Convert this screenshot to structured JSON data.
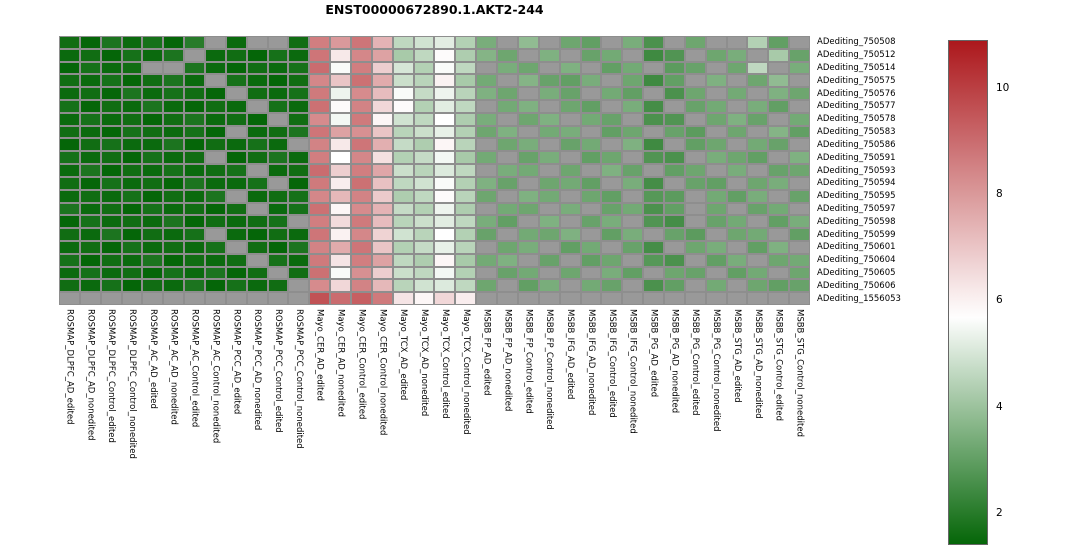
{
  "chart_data": {
    "type": "heatmap",
    "title": "ENST00000672890.1.AKT2-244",
    "legend_position": "right-colorbar",
    "grid": true,
    "rows": [
      "ADediting_750508",
      "ADediting_750512",
      "ADediting_750514",
      "ADediting_750575",
      "ADediting_750576",
      "ADediting_750577",
      "ADediting_750578",
      "ADediting_750583",
      "ADediting_750586",
      "ADediting_750591",
      "ADediting_750593",
      "ADediting_750594",
      "ADediting_750595",
      "ADediting_750597",
      "ADediting_750598",
      "ADediting_750599",
      "ADediting_750601",
      "ADediting_750604",
      "ADediting_750605",
      "ADediting_750606",
      "ADediting_1556053"
    ],
    "columns": [
      "ROSMAP_DLPFC_AD_edited",
      "ROSMAP_DLPFC_AD_nonedited",
      "ROSMAP_DLPFC_Control_edited",
      "ROSMAP_DLPFC_Control_nonedited",
      "ROSMAP_AC_AD_edited",
      "ROSMAP_AC_AD_nonedited",
      "ROSMAP_AC_Control_edited",
      "ROSMAP_AC_Control_nonedited",
      "ROSMAP_PCC_AD_edited",
      "ROSMAP_PCC_AD_nonedited",
      "ROSMAP_PCC_Control_edited",
      "ROSMAP_PCC_Control_nonedited",
      "Mayo_CER_AD_edited",
      "Mayo_CER_AD_nonedited",
      "Mayo_CER_Control_edited",
      "Mayo_CER_Control_nonedited",
      "Mayo_TCX_AD_edited",
      "Mayo_TCX_AD_nonedited",
      "Mayo_TCX_Control_edited",
      "Mayo_TCX_Control_nonedited",
      "MSBB_FP_AD_edited",
      "MSBB_FP_AD_nonedited",
      "MSBB_FP_Control_edited",
      "MSBB_FP_Control_nonedited",
      "MSBB_IFG_AD_edited",
      "MSBB_IFG_AD_nonedited",
      "MSBB_IFG_Control_edited",
      "MSBB_IFG_Control_nonedited",
      "MSBB_PG_AD_edited",
      "MSBB_PG_AD_nonedited",
      "MSBB_PG_Control_edited",
      "MSBB_PG_Control_nonedited",
      "MSBB_STG_AD_edited",
      "MSBB_STG_AD_nonedited",
      "MSBB_STG_Control_edited",
      "MSBB_STG_Control_nonedited"
    ],
    "values": [
      [
        1.6,
        1.4,
        1.8,
        1.5,
        1.7,
        1.4,
        2.0,
        null,
        1.5,
        null,
        null,
        1.6,
        8.6,
        8.0,
        8.8,
        7.4,
        4.6,
        4.9,
        5.2,
        4.4,
        3.4,
        null,
        3.8,
        null,
        3.2,
        3.0,
        null,
        3.4,
        2.6,
        null,
        3.2,
        null,
        null,
        4.4,
        3.0,
        null
      ],
      [
        1.5,
        1.6,
        1.4,
        1.7,
        1.5,
        1.8,
        null,
        1.5,
        1.6,
        1.4,
        1.7,
        1.5,
        8.8,
        6.2,
        8.4,
        7.8,
        4.2,
        4.6,
        5.8,
        4.3,
        3.6,
        3.2,
        null,
        3.5,
        null,
        3.1,
        3.3,
        null,
        2.4,
        2.7,
        null,
        3.2,
        3.4,
        null,
        4.2,
        3.1
      ],
      [
        1.4,
        1.7,
        1.5,
        1.6,
        null,
        null,
        1.8,
        1.5,
        1.4,
        1.6,
        1.5,
        1.7,
        9.0,
        5.6,
        8.6,
        6.8,
        5.0,
        4.4,
        5.6,
        4.6,
        null,
        3.4,
        3.2,
        null,
        3.5,
        null,
        3.0,
        3.3,
        null,
        2.9,
        3.1,
        null,
        3.2,
        4.6,
        null,
        3.4
      ],
      [
        1.6,
        1.5,
        1.7,
        1.4,
        1.6,
        1.8,
        1.5,
        null,
        1.7,
        1.5,
        1.4,
        1.6,
        8.4,
        7.0,
        8.9,
        7.6,
        4.8,
        4.5,
        6.0,
        4.2,
        3.3,
        null,
        3.6,
        3.1,
        3.0,
        3.4,
        null,
        3.2,
        2.4,
        3.0,
        null,
        3.5,
        null,
        3.2,
        3.8,
        null
      ],
      [
        1.5,
        1.6,
        1.4,
        1.8,
        1.5,
        1.7,
        1.6,
        1.4,
        null,
        1.6,
        1.5,
        1.7,
        8.7,
        5.4,
        8.3,
        7.2,
        5.6,
        4.7,
        5.4,
        4.5,
        3.5,
        3.2,
        null,
        3.4,
        3.1,
        null,
        3.3,
        3.0,
        null,
        2.6,
        3.2,
        null,
        3.3,
        null,
        3.5,
        3.2
      ],
      [
        1.7,
        1.4,
        1.6,
        1.5,
        1.8,
        1.5,
        1.4,
        1.6,
        1.5,
        null,
        1.7,
        1.5,
        8.9,
        5.8,
        8.5,
        6.6,
        5.8,
        4.4,
        5.2,
        4.6,
        null,
        3.3,
        3.5,
        null,
        3.2,
        3.0,
        null,
        3.4,
        2.5,
        null,
        3.1,
        3.3,
        null,
        3.4,
        3.0,
        null
      ],
      [
        1.5,
        1.7,
        1.5,
        1.6,
        1.4,
        1.6,
        1.8,
        1.5,
        1.6,
        1.4,
        null,
        1.6,
        8.3,
        5.5,
        8.7,
        5.9,
        4.9,
        4.6,
        5.7,
        4.3,
        3.4,
        null,
        3.2,
        3.5,
        null,
        3.3,
        3.1,
        null,
        2.6,
        2.7,
        null,
        3.2,
        3.5,
        3.1,
        null,
        3.3
      ],
      [
        1.6,
        1.5,
        1.4,
        1.7,
        1.6,
        1.5,
        1.7,
        1.4,
        null,
        1.5,
        1.6,
        1.8,
        8.8,
        7.8,
        8.2,
        7.0,
        4.5,
        4.8,
        5.3,
        4.4,
        3.2,
        3.5,
        null,
        3.3,
        3.4,
        null,
        3.0,
        3.2,
        null,
        3.1,
        2.9,
        null,
        3.2,
        null,
        3.6,
        3.0
      ],
      [
        1.4,
        1.6,
        1.7,
        1.5,
        1.5,
        1.8,
        1.4,
        1.6,
        1.5,
        1.7,
        1.5,
        null,
        8.5,
        6.2,
        8.8,
        7.5,
        4.7,
        4.3,
        5.9,
        4.5,
        null,
        3.2,
        3.4,
        null,
        3.1,
        3.3,
        null,
        3.5,
        2.4,
        null,
        3.0,
        3.2,
        null,
        3.3,
        3.1,
        null
      ],
      [
        1.7,
        1.5,
        1.6,
        1.4,
        1.7,
        1.5,
        1.6,
        null,
        1.4,
        1.6,
        1.8,
        1.5,
        8.6,
        5.7,
        8.4,
        6.4,
        4.4,
        4.7,
        5.5,
        4.2,
        3.3,
        null,
        3.1,
        3.4,
        null,
        3.0,
        3.2,
        null,
        2.7,
        2.6,
        null,
        3.4,
        3.2,
        3.0,
        null,
        3.5
      ],
      [
        1.5,
        1.8,
        1.4,
        1.6,
        1.5,
        1.7,
        1.5,
        1.6,
        1.7,
        null,
        1.5,
        1.6,
        9.0,
        6.8,
        8.6,
        7.7,
        4.8,
        4.5,
        5.1,
        4.6,
        null,
        3.4,
        3.3,
        null,
        3.2,
        null,
        3.5,
        3.1,
        null,
        3.0,
        3.2,
        null,
        3.4,
        null,
        3.1,
        3.2
      ],
      [
        1.6,
        1.4,
        1.7,
        1.5,
        1.6,
        1.4,
        1.8,
        1.5,
        1.5,
        1.7,
        null,
        1.4,
        8.7,
        6.1,
        8.9,
        7.1,
        4.6,
        4.9,
        5.6,
        4.4,
        3.5,
        3.1,
        null,
        3.2,
        3.3,
        3.0,
        null,
        3.4,
        2.5,
        null,
        3.1,
        3.0,
        null,
        3.2,
        3.4,
        null
      ],
      [
        1.5,
        1.6,
        1.5,
        1.7,
        1.4,
        1.6,
        1.5,
        1.8,
        null,
        1.5,
        1.6,
        1.7,
        8.4,
        7.3,
        8.5,
        6.9,
        4.3,
        4.6,
        5.8,
        4.5,
        3.2,
        null,
        3.5,
        3.3,
        null,
        3.2,
        3.0,
        null,
        2.8,
        2.9,
        null,
        3.3,
        3.0,
        3.4,
        null,
        3.1
      ],
      [
        1.8,
        1.5,
        1.6,
        1.4,
        1.7,
        1.5,
        1.6,
        1.4,
        1.6,
        null,
        1.5,
        1.7,
        8.9,
        5.9,
        8.3,
        7.4,
        4.7,
        4.4,
        5.4,
        4.3,
        null,
        3.3,
        3.2,
        null,
        3.4,
        null,
        3.1,
        3.3,
        2.6,
        3.0,
        null,
        3.2,
        null,
        3.1,
        3.3,
        null
      ],
      [
        1.4,
        1.7,
        1.5,
        1.6,
        1.5,
        1.8,
        1.4,
        1.6,
        1.5,
        1.6,
        1.7,
        null,
        8.6,
        6.5,
        8.7,
        7.2,
        4.5,
        4.8,
        5.2,
        4.6,
        3.4,
        3.0,
        null,
        3.5,
        null,
        3.1,
        3.4,
        null,
        2.7,
        2.5,
        null,
        3.1,
        3.3,
        null,
        3.0,
        3.4
      ],
      [
        1.6,
        1.5,
        1.8,
        1.4,
        1.6,
        1.5,
        1.7,
        null,
        1.5,
        1.4,
        1.6,
        1.5,
        8.8,
        6.0,
        8.4,
        6.7,
        4.9,
        4.5,
        5.7,
        4.4,
        3.1,
        null,
        3.3,
        3.2,
        3.5,
        null,
        3.0,
        3.4,
        null,
        3.1,
        2.9,
        null,
        3.2,
        3.3,
        null,
        3.0
      ],
      [
        1.5,
        1.6,
        1.4,
        1.7,
        1.5,
        1.6,
        1.5,
        1.7,
        null,
        1.6,
        1.4,
        1.8,
        8.5,
        7.6,
        8.8,
        7.0,
        4.4,
        4.7,
        5.3,
        4.5,
        null,
        3.2,
        3.4,
        null,
        3.0,
        3.3,
        null,
        3.1,
        2.5,
        null,
        3.2,
        3.4,
        null,
        3.0,
        3.5,
        null
      ],
      [
        1.7,
        1.4,
        1.6,
        1.5,
        1.8,
        1.4,
        1.6,
        1.5,
        1.6,
        null,
        1.7,
        1.5,
        8.7,
        6.3,
        8.6,
        7.8,
        4.6,
        4.3,
        5.9,
        4.2,
        3.3,
        3.5,
        null,
        3.1,
        null,
        3.0,
        3.2,
        null,
        2.8,
        2.6,
        null,
        3.0,
        3.4,
        null,
        3.2,
        3.3
      ],
      [
        1.5,
        1.7,
        1.5,
        1.6,
        1.4,
        1.7,
        1.5,
        1.8,
        1.4,
        1.6,
        null,
        1.6,
        8.9,
        5.6,
        8.2,
        6.8,
        4.8,
        4.6,
        5.5,
        4.4,
        null,
        3.1,
        3.3,
        null,
        3.2,
        null,
        3.4,
        3.0,
        null,
        3.2,
        3.1,
        null,
        3.0,
        3.3,
        null,
        3.2
      ],
      [
        1.6,
        1.5,
        1.7,
        1.4,
        1.6,
        1.5,
        1.8,
        1.4,
        1.7,
        1.5,
        1.6,
        null,
        8.3,
        6.6,
        8.5,
        7.3,
        4.5,
        4.9,
        5.1,
        4.6,
        3.2,
        null,
        3.0,
        3.4,
        null,
        3.3,
        3.1,
        null,
        2.6,
        3.0,
        null,
        3.3,
        null,
        3.2,
        3.0,
        3.1
      ],
      [
        null,
        null,
        null,
        null,
        null,
        null,
        null,
        null,
        null,
        null,
        null,
        null,
        9.6,
        9.0,
        9.3,
        8.7,
        6.3,
        5.9,
        6.6,
        6.1,
        null,
        null,
        null,
        null,
        null,
        null,
        null,
        null,
        null,
        null,
        null,
        null,
        null,
        null,
        null,
        null
      ]
    ]
  },
  "colorbar": {
    "ticks": [
      10,
      8,
      6,
      4,
      2
    ],
    "min": 1.4,
    "mid": 5.7,
    "max": 10.9,
    "color_min": "#056608",
    "color_mid": "#ffffff",
    "color_max": "#ac181c",
    "na_color": "#999999",
    "cell_border_color": "#8e8e8e"
  }
}
